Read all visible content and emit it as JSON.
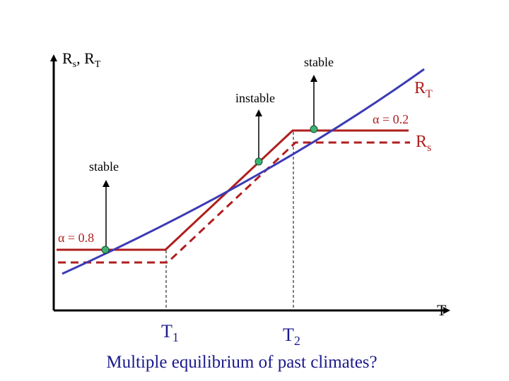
{
  "axes": {
    "y_label": "Rs, RT",
    "y_label_parts": {
      "main1": "R",
      "sub1": "s",
      "sep": ", ",
      "main2": "R",
      "sub2": "T"
    },
    "x_label": "T"
  },
  "curves": {
    "rt": {
      "main": "R",
      "sub": "T",
      "color": "#3b3bb5"
    },
    "rs": {
      "main": "R",
      "sub": "s",
      "color": "#b01e1e"
    }
  },
  "annotations": {
    "alpha_high": "α = 0.2",
    "alpha_low": "α = 0.8",
    "stable_upper": "stable",
    "instable": "instable",
    "stable_lower": "stable"
  },
  "thresholds": {
    "t1": {
      "main": "T",
      "sub": "1"
    },
    "t2": {
      "main": "T",
      "sub": "2"
    }
  },
  "caption": "Multiple equilibrium of past climates?",
  "colors": {
    "axis": "#000000",
    "rt_line": "#3b3bb5",
    "rs_line": "#b01e1e",
    "equilibrium_point": "#3cb371",
    "label_red": "#b01e1e"
  }
}
